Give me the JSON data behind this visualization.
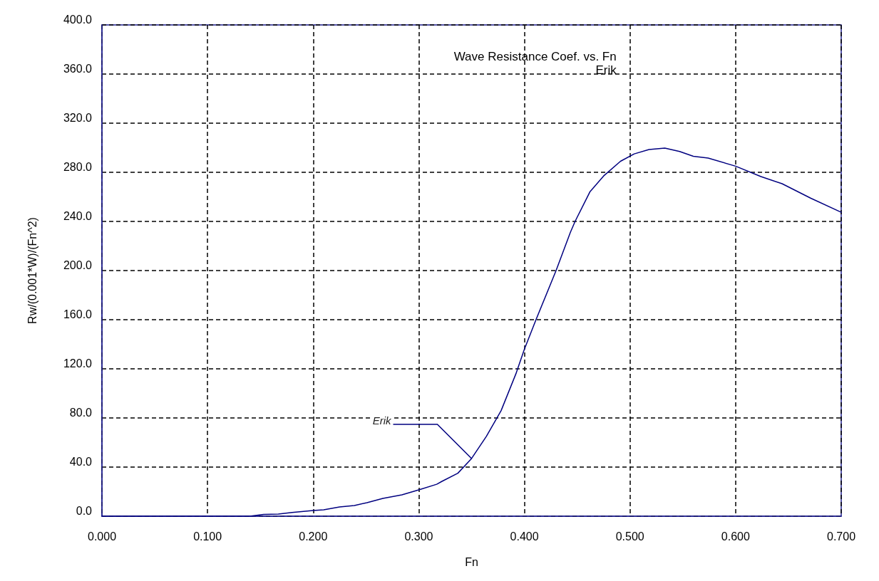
{
  "chart_data": {
    "type": "line",
    "title": "Wave Resistance Coef. vs. Fn",
    "subtitle": "Erik",
    "xlabel": "Fn",
    "ylabel": "Rw/(0.001*W)/(Fn^2)",
    "series": [
      {
        "name": "Erik",
        "color": "#000080",
        "x": [
          0,
          0.14,
          0.153,
          0.167,
          0.18,
          0.2,
          0.21,
          0.225,
          0.239,
          0.251,
          0.266,
          0.284,
          0.3,
          0.317,
          0.322,
          0.337,
          0.35,
          0.364,
          0.378,
          0.392,
          0.4,
          0.411,
          0.43,
          0.4435,
          0.448,
          0.462,
          0.475,
          0.491,
          0.504,
          0.518,
          0.533,
          0.547,
          0.56,
          0.574,
          0.6,
          0.624,
          0.644,
          0.671,
          0.7
        ],
        "values": [
          0,
          0,
          1.5,
          1.7,
          3,
          4.6,
          5.2,
          7.5,
          8.7,
          11,
          14.5,
          17.4,
          21.4,
          26,
          28.4,
          35,
          47,
          65,
          86,
          116,
          136,
          160,
          200,
          231,
          240,
          264,
          277,
          289,
          295,
          298.6,
          299.7,
          297,
          293,
          291.6,
          285,
          276.5,
          270.7,
          259,
          247.5
        ]
      }
    ],
    "xlim": [
      0,
      0.7
    ],
    "xticks": [
      {
        "value": 0,
        "label": "0.000"
      },
      {
        "value": 0.1,
        "label": "0.100"
      },
      {
        "value": 0.2,
        "label": "0.200"
      },
      {
        "value": 0.3,
        "label": "0.300"
      },
      {
        "value": 0.4,
        "label": "0.400"
      },
      {
        "value": 0.5,
        "label": "0.500"
      },
      {
        "value": 0.6,
        "label": "0.600"
      },
      {
        "value": 0.7,
        "label": "0.700"
      }
    ],
    "ylim": [
      0,
      400
    ],
    "yticks": [
      {
        "value": 0,
        "label": "0.0"
      },
      {
        "value": 40,
        "label": "40.0"
      },
      {
        "value": 80,
        "label": "80.0"
      },
      {
        "value": 120,
        "label": "120.0"
      },
      {
        "value": 160,
        "label": "160.0"
      },
      {
        "value": 200,
        "label": "200.0"
      },
      {
        "value": 240,
        "label": "240.0"
      },
      {
        "value": 280,
        "label": "280.0"
      },
      {
        "value": 320,
        "label": "320.0"
      },
      {
        "value": 360,
        "label": "360.0"
      },
      {
        "value": 400,
        "label": "400.0"
      }
    ],
    "grid": true,
    "legend": false,
    "marker": "none",
    "line_style": "solid"
  }
}
